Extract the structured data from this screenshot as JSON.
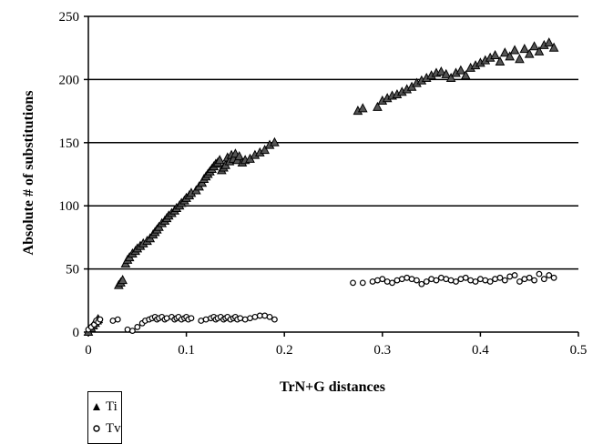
{
  "chart_data": {
    "type": "scatter",
    "xlabel": "TrN+G distances",
    "ylabel": "Absolute # of substitutions",
    "xlim": [
      0,
      0.5
    ],
    "ylim": [
      0,
      250
    ],
    "xticks": [
      "0",
      "0.1",
      "0.2",
      "0.3",
      "0.4",
      "0.5"
    ],
    "yticks": [
      "0",
      "50",
      "100",
      "150",
      "200",
      "250"
    ],
    "grid": "horizontal",
    "legend_position": "bottom-left",
    "series": [
      {
        "name": "Ti",
        "marker": "triangle",
        "points": [
          [
            0.0,
            0
          ],
          [
            0.003,
            3
          ],
          [
            0.005,
            5
          ],
          [
            0.007,
            7
          ],
          [
            0.009,
            9
          ],
          [
            0.01,
            10
          ],
          [
            0.031,
            37
          ],
          [
            0.033,
            39
          ],
          [
            0.035,
            41
          ],
          [
            0.038,
            54
          ],
          [
            0.04,
            57
          ],
          [
            0.042,
            59
          ],
          [
            0.045,
            62
          ],
          [
            0.048,
            64
          ],
          [
            0.05,
            66
          ],
          [
            0.053,
            68
          ],
          [
            0.056,
            70
          ],
          [
            0.06,
            72
          ],
          [
            0.063,
            74
          ],
          [
            0.066,
            77
          ],
          [
            0.068,
            79
          ],
          [
            0.07,
            81
          ],
          [
            0.072,
            83
          ],
          [
            0.075,
            86
          ],
          [
            0.078,
            88
          ],
          [
            0.08,
            90
          ],
          [
            0.082,
            92
          ],
          [
            0.085,
            94
          ],
          [
            0.088,
            96
          ],
          [
            0.09,
            98
          ],
          [
            0.093,
            100
          ],
          [
            0.095,
            102
          ],
          [
            0.098,
            104
          ],
          [
            0.1,
            106
          ],
          [
            0.103,
            108
          ],
          [
            0.105,
            110
          ],
          [
            0.11,
            112
          ],
          [
            0.113,
            115
          ],
          [
            0.116,
            118
          ],
          [
            0.118,
            121
          ],
          [
            0.12,
            123
          ],
          [
            0.122,
            125
          ],
          [
            0.124,
            127
          ],
          [
            0.126,
            129
          ],
          [
            0.128,
            131
          ],
          [
            0.13,
            133
          ],
          [
            0.132,
            134
          ],
          [
            0.134,
            136
          ],
          [
            0.136,
            128
          ],
          [
            0.138,
            130
          ],
          [
            0.14,
            132
          ],
          [
            0.142,
            138
          ],
          [
            0.144,
            135
          ],
          [
            0.146,
            140
          ],
          [
            0.148,
            137
          ],
          [
            0.15,
            141
          ],
          [
            0.152,
            136
          ],
          [
            0.154,
            139
          ],
          [
            0.157,
            134
          ],
          [
            0.16,
            136
          ],
          [
            0.165,
            137
          ],
          [
            0.17,
            140
          ],
          [
            0.175,
            142
          ],
          [
            0.18,
            144
          ],
          [
            0.185,
            148
          ],
          [
            0.19,
            150
          ],
          [
            0.275,
            175
          ],
          [
            0.28,
            177
          ],
          [
            0.295,
            178
          ],
          [
            0.3,
            183
          ],
          [
            0.305,
            185
          ],
          [
            0.31,
            187
          ],
          [
            0.315,
            188
          ],
          [
            0.32,
            190
          ],
          [
            0.325,
            192
          ],
          [
            0.33,
            194
          ],
          [
            0.335,
            197
          ],
          [
            0.34,
            199
          ],
          [
            0.345,
            201
          ],
          [
            0.35,
            203
          ],
          [
            0.355,
            205
          ],
          [
            0.36,
            206
          ],
          [
            0.365,
            204
          ],
          [
            0.37,
            201
          ],
          [
            0.375,
            205
          ],
          [
            0.38,
            207
          ],
          [
            0.385,
            203
          ],
          [
            0.39,
            209
          ],
          [
            0.395,
            211
          ],
          [
            0.4,
            213
          ],
          [
            0.405,
            215
          ],
          [
            0.41,
            217
          ],
          [
            0.415,
            219
          ],
          [
            0.42,
            214
          ],
          [
            0.425,
            221
          ],
          [
            0.43,
            218
          ],
          [
            0.435,
            223
          ],
          [
            0.44,
            216
          ],
          [
            0.445,
            224
          ],
          [
            0.45,
            220
          ],
          [
            0.455,
            226
          ],
          [
            0.46,
            222
          ],
          [
            0.465,
            227
          ],
          [
            0.47,
            229
          ],
          [
            0.475,
            225
          ]
        ]
      },
      {
        "name": "Tv",
        "marker": "circle",
        "points": [
          [
            0.0,
            2
          ],
          [
            0.003,
            4
          ],
          [
            0.006,
            6
          ],
          [
            0.008,
            9
          ],
          [
            0.01,
            8
          ],
          [
            0.012,
            10
          ],
          [
            0.025,
            9
          ],
          [
            0.03,
            10
          ],
          [
            0.04,
            2
          ],
          [
            0.045,
            1
          ],
          [
            0.05,
            4
          ],
          [
            0.055,
            7
          ],
          [
            0.058,
            9
          ],
          [
            0.062,
            10
          ],
          [
            0.065,
            11
          ],
          [
            0.068,
            12
          ],
          [
            0.07,
            10
          ],
          [
            0.072,
            11
          ],
          [
            0.075,
            12
          ],
          [
            0.078,
            10
          ],
          [
            0.08,
            11
          ],
          [
            0.085,
            12
          ],
          [
            0.088,
            10
          ],
          [
            0.09,
            11
          ],
          [
            0.092,
            12
          ],
          [
            0.095,
            10
          ],
          [
            0.098,
            11
          ],
          [
            0.1,
            12
          ],
          [
            0.102,
            10
          ],
          [
            0.105,
            11
          ],
          [
            0.115,
            9
          ],
          [
            0.12,
            10
          ],
          [
            0.125,
            11
          ],
          [
            0.128,
            12
          ],
          [
            0.13,
            10
          ],
          [
            0.132,
            11
          ],
          [
            0.135,
            12
          ],
          [
            0.138,
            10
          ],
          [
            0.14,
            11
          ],
          [
            0.142,
            12
          ],
          [
            0.145,
            10
          ],
          [
            0.148,
            11
          ],
          [
            0.15,
            12
          ],
          [
            0.152,
            10
          ],
          [
            0.155,
            11
          ],
          [
            0.16,
            10
          ],
          [
            0.165,
            11
          ],
          [
            0.17,
            12
          ],
          [
            0.175,
            13
          ],
          [
            0.18,
            13
          ],
          [
            0.185,
            12
          ],
          [
            0.19,
            10
          ],
          [
            0.27,
            39
          ],
          [
            0.28,
            39
          ],
          [
            0.29,
            40
          ],
          [
            0.295,
            41
          ],
          [
            0.3,
            42
          ],
          [
            0.305,
            40
          ],
          [
            0.31,
            39
          ],
          [
            0.315,
            41
          ],
          [
            0.32,
            42
          ],
          [
            0.325,
            43
          ],
          [
            0.33,
            42
          ],
          [
            0.335,
            41
          ],
          [
            0.34,
            38
          ],
          [
            0.345,
            40
          ],
          [
            0.35,
            42
          ],
          [
            0.355,
            41
          ],
          [
            0.36,
            43
          ],
          [
            0.365,
            42
          ],
          [
            0.37,
            41
          ],
          [
            0.375,
            40
          ],
          [
            0.38,
            42
          ],
          [
            0.385,
            43
          ],
          [
            0.39,
            41
          ],
          [
            0.395,
            40
          ],
          [
            0.4,
            42
          ],
          [
            0.405,
            41
          ],
          [
            0.41,
            40
          ],
          [
            0.415,
            42
          ],
          [
            0.42,
            43
          ],
          [
            0.425,
            41
          ],
          [
            0.43,
            44
          ],
          [
            0.435,
            45
          ],
          [
            0.44,
            40
          ],
          [
            0.445,
            42
          ],
          [
            0.45,
            43
          ],
          [
            0.455,
            41
          ],
          [
            0.46,
            46
          ],
          [
            0.465,
            42
          ],
          [
            0.47,
            45
          ],
          [
            0.475,
            43
          ]
        ]
      }
    ]
  }
}
